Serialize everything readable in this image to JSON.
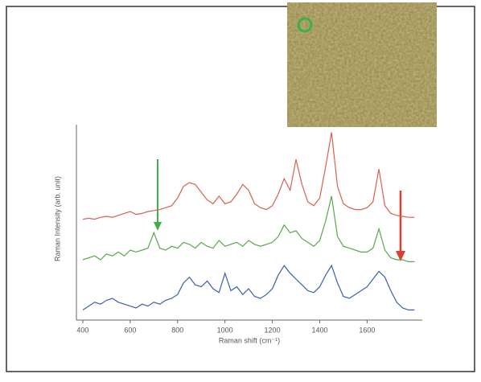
{
  "chart_data": {
    "type": "line",
    "xlabel": "Raman shift (cm⁻¹)",
    "ylabel": "Raman Intensity (arb. unit)",
    "x": [
      400,
      425,
      450,
      475,
      500,
      525,
      550,
      575,
      600,
      625,
      650,
      675,
      700,
      725,
      750,
      775,
      800,
      825,
      850,
      875,
      900,
      925,
      950,
      975,
      1000,
      1025,
      1050,
      1075,
      1100,
      1125,
      1150,
      1175,
      1200,
      1225,
      1250,
      1275,
      1300,
      1325,
      1350,
      1375,
      1400,
      1425,
      1450,
      1475,
      1500,
      1525,
      1550,
      1575,
      1600,
      1625,
      1650,
      1675,
      1700,
      1725,
      1750,
      1775,
      1800
    ],
    "xlim": [
      373,
      1833
    ],
    "xticks": [
      400,
      600,
      800,
      1000,
      1200,
      1400,
      1600
    ],
    "ylim": [
      0,
      10
    ],
    "series": [
      {
        "color": "#d9604f",
        "values": [
          5.1,
          5.15,
          5.1,
          5.2,
          5.25,
          5.2,
          5.3,
          5.4,
          5.5,
          5.35,
          5.4,
          5.5,
          5.55,
          5.6,
          5.7,
          5.8,
          6.2,
          6.8,
          7.0,
          6.9,
          6.5,
          6.1,
          5.9,
          6.3,
          5.9,
          6.0,
          6.4,
          6.9,
          6.6,
          5.9,
          5.7,
          5.6,
          5.8,
          6.4,
          7.2,
          6.6,
          8.2,
          6.9,
          6.0,
          5.8,
          6.2,
          7.8,
          9.6,
          6.8,
          5.9,
          5.7,
          5.6,
          5.6,
          5.7,
          6.0,
          7.7,
          5.8,
          5.4,
          5.3,
          5.25,
          5.2,
          5.2
        ]
      },
      {
        "color": "#5aa84a",
        "values": [
          3.0,
          3.1,
          3.2,
          3.0,
          3.3,
          3.2,
          3.4,
          3.2,
          3.5,
          3.4,
          3.5,
          3.6,
          4.4,
          3.6,
          3.5,
          3.7,
          3.6,
          3.9,
          3.8,
          3.6,
          3.9,
          3.7,
          3.6,
          4.0,
          3.7,
          3.8,
          3.9,
          3.7,
          4.0,
          3.8,
          3.7,
          3.8,
          3.9,
          4.2,
          4.8,
          4.4,
          4.5,
          4.1,
          3.9,
          3.7,
          4.0,
          5.0,
          6.3,
          4.2,
          3.7,
          3.6,
          3.5,
          3.4,
          3.4,
          3.6,
          4.6,
          3.5,
          3.1,
          3.0,
          3.0,
          2.9,
          2.9
        ]
      },
      {
        "color": "#3c5fb0",
        "values": [
          0.4,
          0.6,
          0.8,
          0.7,
          0.9,
          1.0,
          0.8,
          0.7,
          0.6,
          0.5,
          0.7,
          0.6,
          0.8,
          0.7,
          0.9,
          1.0,
          1.2,
          1.8,
          2.1,
          1.7,
          1.6,
          1.9,
          1.5,
          1.3,
          2.3,
          1.4,
          1.6,
          1.2,
          1.5,
          1.1,
          1.0,
          1.2,
          1.5,
          2.2,
          2.7,
          2.3,
          2.0,
          1.7,
          1.4,
          1.3,
          1.6,
          2.2,
          2.7,
          1.8,
          1.1,
          1.0,
          1.2,
          1.4,
          1.6,
          2.0,
          2.4,
          2.1,
          1.4,
          0.8,
          0.5,
          0.4,
          0.4
        ]
      }
    ]
  }
}
